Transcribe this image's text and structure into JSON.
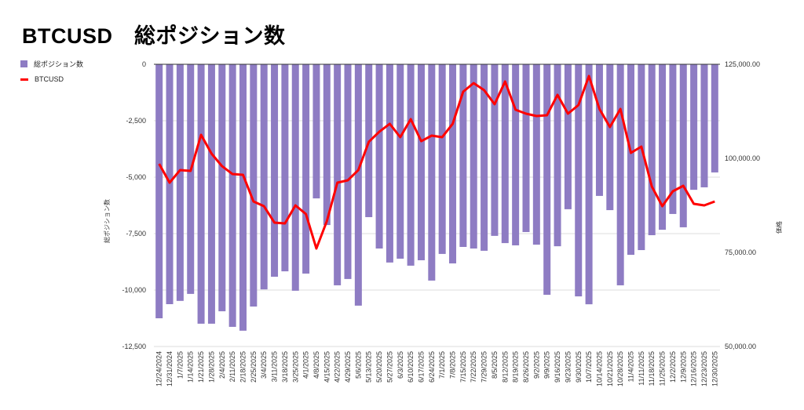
{
  "chart_data": {
    "type": "bar+line",
    "title": "BTCUSD　総ポジション数",
    "ylabel": "総ポジション数",
    "y2label": "価格",
    "ylim": [
      -12500,
      0
    ],
    "y2lim": [
      50000,
      125000
    ],
    "yticks": [
      "0",
      "-2,500",
      "-5,000",
      "-7,500",
      "-10,000",
      "-12,500"
    ],
    "yticks_values": [
      0,
      -2500,
      -5000,
      -7500,
      -10000,
      -12500
    ],
    "y2ticks": [
      "125,000.00",
      "100,000.00",
      "75,000.00",
      "50,000.00"
    ],
    "y2ticks_values": [
      125000,
      100000,
      75000,
      50000
    ],
    "grid": true,
    "legend_position": "top-left",
    "categories": [
      "12/24/2024",
      "12/31/2024",
      "1/7/2025",
      "1/14/2025",
      "1/21/2025",
      "1/28/2025",
      "2/4/2025",
      "2/11/2025",
      "2/18/2025",
      "2/25/2025",
      "3/4/2025",
      "3/11/2025",
      "3/18/2025",
      "3/25/2025",
      "4/1/2025",
      "4/8/2025",
      "4/15/2025",
      "4/22/2025",
      "4/29/2025",
      "5/6/2025",
      "5/13/2025",
      "5/20/2025",
      "5/27/2025",
      "6/3/2025",
      "6/10/2025",
      "6/17/2025",
      "6/24/2025",
      "7/1/2025",
      "7/8/2025",
      "7/15/2025",
      "7/22/2025",
      "7/29/2025",
      "8/5/2025",
      "8/12/2025",
      "8/19/2025",
      "8/26/2025",
      "9/2/2025",
      "9/9/2025",
      "9/16/2025",
      "9/23/2025",
      "9/30/2025",
      "10/7/2025",
      "10/14/2025",
      "10/21/2025",
      "10/28/2025",
      "11/4/2025",
      "11/11/2025",
      "11/18/2025",
      "11/25/2025",
      "12/2/2025",
      "12/9/2025",
      "12/16/2025",
      "12/23/2025",
      "12/30/2025"
    ],
    "series": [
      {
        "name": "総ポジション数",
        "type": "bar",
        "axis": "left",
        "color": "#8e7cc3",
        "values": [
          -11250,
          -10625,
          -10480,
          -10170,
          -11490,
          -11490,
          -10940,
          -11630,
          -11800,
          -10730,
          -9970,
          -9410,
          -9170,
          -10030,
          -9270,
          -5940,
          -7120,
          -9790,
          -9510,
          -10690,
          -6770,
          -8160,
          -8780,
          -8610,
          -8920,
          -8680,
          -9580,
          -8400,
          -8820,
          -8090,
          -8160,
          -8260,
          -7600,
          -7920,
          -8020,
          -7430,
          -7990,
          -10210,
          -8060,
          -6420,
          -10280,
          -10630,
          -5830,
          -6460,
          -9790,
          -8440,
          -8230,
          -7570,
          -7330,
          -6630,
          -7220,
          -5560,
          -5450,
          -4790
        ]
      },
      {
        "name": "BTCUSD",
        "type": "line",
        "axis": "right",
        "color": "#ff0000",
        "values": [
          98540,
          93540,
          96880,
          96670,
          106250,
          101250,
          97920,
          95830,
          95630,
          88540,
          87290,
          82920,
          82710,
          87500,
          85210,
          76040,
          83330,
          93540,
          94170,
          96880,
          104380,
          107080,
          109170,
          105630,
          110420,
          104580,
          106040,
          105630,
          109170,
          117710,
          120000,
          118130,
          114380,
          120420,
          112920,
          111880,
          111250,
          111460,
          116880,
          111880,
          114170,
          121880,
          113130,
          108330,
          113130,
          101460,
          103130,
          92500,
          87290,
          91250,
          92710,
          87920,
          87500,
          88540
        ]
      }
    ]
  }
}
